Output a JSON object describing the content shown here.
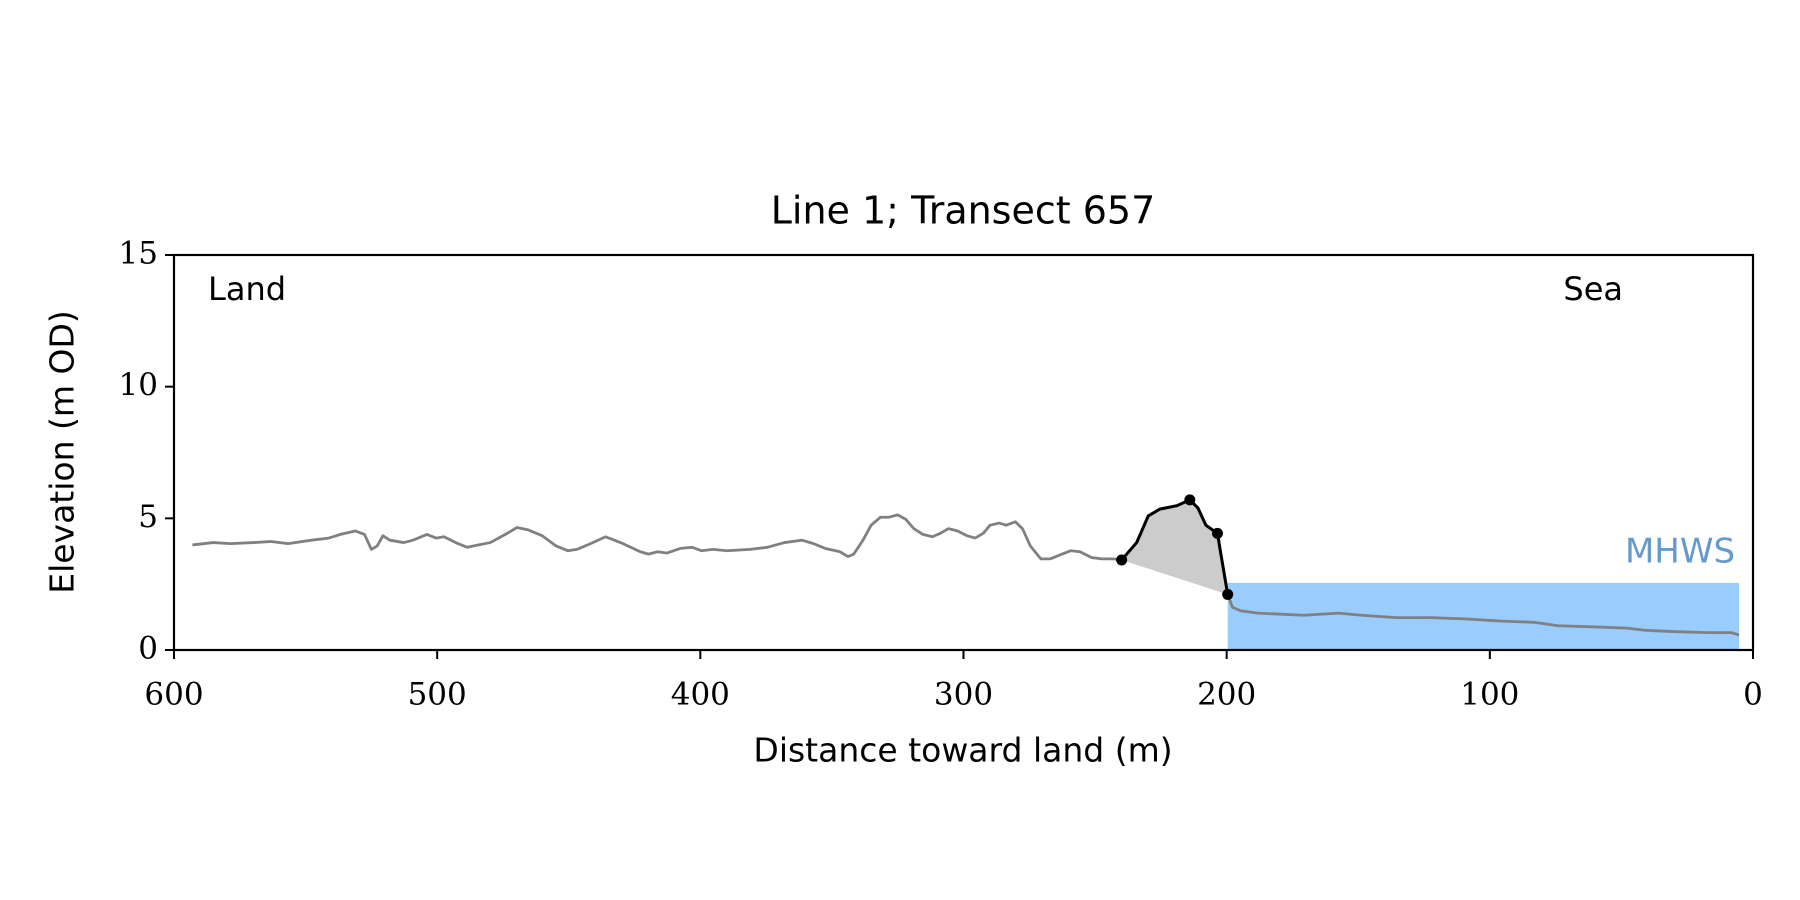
{
  "chart_data": {
    "type": "line",
    "title": "Line 1; Transect 657",
    "x_label": "Distance toward land (m)",
    "y_label": "Elevation (m OD)",
    "annotations": {
      "land": "Land",
      "sea": "Sea"
    },
    "xlim": [
      600,
      0
    ],
    "ylim": [
      0,
      15
    ],
    "xticks": [
      600,
      500,
      400,
      300,
      200,
      100,
      0
    ],
    "yticks": [
      0,
      5,
      10,
      15
    ],
    "profile": {
      "color": "#808080",
      "x": [
        593.0,
        585.1,
        578.5,
        569.7,
        563.2,
        556.6,
        547.8,
        541.2,
        536.8,
        531.1,
        527.6,
        525.0,
        522.8,
        520.6,
        518.0,
        512.7,
        509.2,
        503.9,
        500.4,
        497.4,
        493.0,
        488.6,
        484.2,
        479.8,
        474.1,
        469.7,
        465.4,
        460.1,
        454.8,
        450.4,
        446.9,
        441.7,
        436.0,
        429.4,
        422.8,
        419.7,
        416.2,
        412.7,
        407.5,
        403.1,
        399.6,
        395.2,
        389.9,
        381.1,
        374.6,
        368.0,
        361.4,
        357.0,
        352.6,
        346.9,
        343.9,
        341.7,
        338.2,
        335.1,
        331.6,
        328.5,
        325.0,
        321.9,
        318.9,
        315.4,
        311.8,
        308.8,
        305.7,
        302.2,
        298.7,
        295.6,
        292.5,
        289.9,
        286.4,
        283.8,
        280.3,
        277.6,
        274.6,
        270.6,
        267.1,
        263.6,
        259.2,
        255.7,
        251.3,
        247.4,
        243.0,
        239.9,
        234.2,
        229.8,
        225.4,
        218.9,
        214.0,
        210.9,
        207.9,
        203.5,
        202.2,
        199.6,
        197.8,
        194.7,
        188.2,
        179.4,
        170.6,
        157.5,
        148.7,
        135.5,
        122.4,
        109.2,
        96.1,
        82.9,
        74.1,
        61.0,
        47.8,
        41.2,
        30.3,
        17.1,
        8.3,
        5.3
      ],
      "values": [
        3.99,
        4.08,
        4.04,
        4.08,
        4.12,
        4.04,
        4.17,
        4.25,
        4.39,
        4.52,
        4.39,
        3.82,
        3.95,
        4.34,
        4.17,
        4.08,
        4.17,
        4.39,
        4.25,
        4.3,
        4.08,
        3.9,
        3.99,
        4.08,
        4.39,
        4.65,
        4.56,
        4.34,
        3.95,
        3.77,
        3.82,
        4.04,
        4.3,
        4.04,
        3.73,
        3.64,
        3.73,
        3.68,
        3.86,
        3.9,
        3.77,
        3.82,
        3.77,
        3.82,
        3.9,
        4.08,
        4.17,
        4.04,
        3.86,
        3.73,
        3.55,
        3.64,
        4.17,
        4.74,
        5.04,
        5.04,
        5.13,
        4.96,
        4.61,
        4.39,
        4.3,
        4.43,
        4.61,
        4.52,
        4.34,
        4.25,
        4.43,
        4.74,
        4.82,
        4.74,
        4.87,
        4.61,
        3.95,
        3.46,
        3.46,
        3.6,
        3.77,
        3.73,
        3.51,
        3.46,
        3.46,
        3.42,
        4.08,
        5.09,
        5.35,
        5.48,
        5.7,
        5.39,
        4.74,
        4.43,
        3.64,
        2.11,
        1.62,
        1.49,
        1.4,
        1.36,
        1.32,
        1.4,
        1.32,
        1.23,
        1.23,
        1.18,
        1.1,
        1.05,
        0.92,
        0.88,
        0.83,
        0.75,
        0.7,
        0.66,
        0.66,
        0.57
      ]
    },
    "dune": {
      "color": "#000000",
      "fill": "#cccccc",
      "x": [
        239.9,
        234.2,
        229.8,
        225.4,
        218.9,
        214.0,
        210.9,
        207.9,
        203.5,
        202.2,
        199.6
      ],
      "values": [
        3.42,
        4.08,
        5.09,
        5.35,
        5.48,
        5.7,
        5.39,
        4.74,
        4.43,
        3.64,
        2.11
      ]
    },
    "dune_points": {
      "x": [
        239.9,
        214.0,
        203.5,
        199.6
      ],
      "values": [
        3.42,
        5.7,
        4.43,
        2.11
      ]
    },
    "mhws": {
      "label": "MHWS",
      "value": 2.55,
      "x": [
        199.6,
        5.3
      ],
      "color": "#99ccff",
      "text_color": "#6699cc"
    }
  }
}
